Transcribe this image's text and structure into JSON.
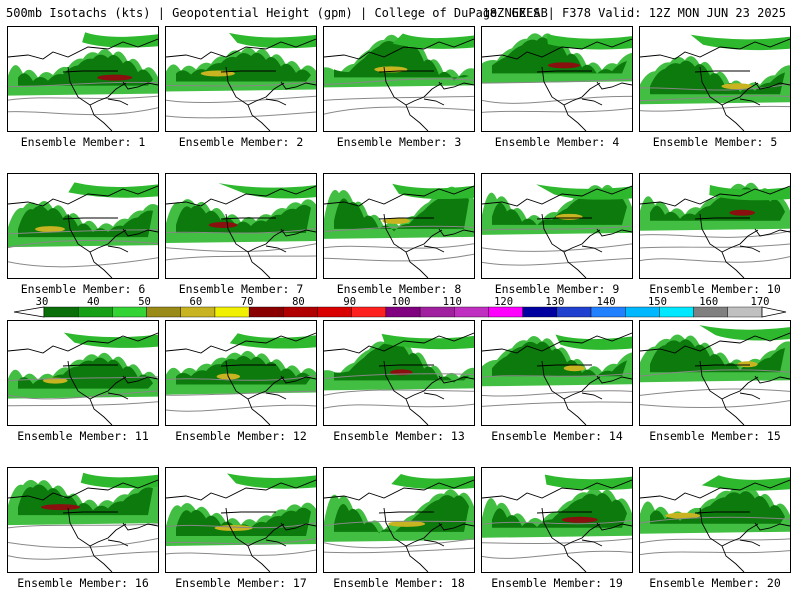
{
  "header": {
    "title_left": "500mb Isotachs (kts) | Geopotential Height (gpm) | College of DuPage NEXLAB",
    "title_right": "18Z GEFS | F378 Valid: 12Z MON JUN 23 2025"
  },
  "panels": [
    {
      "label": "Ensemble Member: 1"
    },
    {
      "label": "Ensemble Member: 2"
    },
    {
      "label": "Ensemble Member: 3"
    },
    {
      "label": "Ensemble Member: 4"
    },
    {
      "label": "Ensemble Member: 5"
    },
    {
      "label": "Ensemble Member: 6"
    },
    {
      "label": "Ensemble Member: 7"
    },
    {
      "label": "Ensemble Member: 8"
    },
    {
      "label": "Ensemble Member: 9"
    },
    {
      "label": "Ensemble Member: 10"
    },
    {
      "label": "Ensemble Member: 11"
    },
    {
      "label": "Ensemble Member: 12"
    },
    {
      "label": "Ensemble Member: 13"
    },
    {
      "label": "Ensemble Member: 14"
    },
    {
      "label": "Ensemble Member: 15"
    },
    {
      "label": "Ensemble Member: 16"
    },
    {
      "label": "Ensemble Member: 17"
    },
    {
      "label": "Ensemble Member: 18"
    },
    {
      "label": "Ensemble Member: 19"
    },
    {
      "label": "Ensemble Member: 20"
    }
  ],
  "colorbar": {
    "ticks": [
      "30",
      "40",
      "50",
      "60",
      "70",
      "80",
      "90",
      "100",
      "110",
      "120",
      "130",
      "140",
      "150",
      "160",
      "170"
    ],
    "colors": [
      "#0a6e0a",
      "#17a017",
      "#35d435",
      "#9a8a18",
      "#c8b420",
      "#f0f000",
      "#8a0000",
      "#b00000",
      "#d80000",
      "#ff2020",
      "#800080",
      "#a020a0",
      "#c030c0",
      "#ff00ff",
      "#0000a0",
      "#2040d0",
      "#2080ff",
      "#00b8ff",
      "#00e8ff",
      "#808080",
      "#c0c0c0"
    ]
  }
}
